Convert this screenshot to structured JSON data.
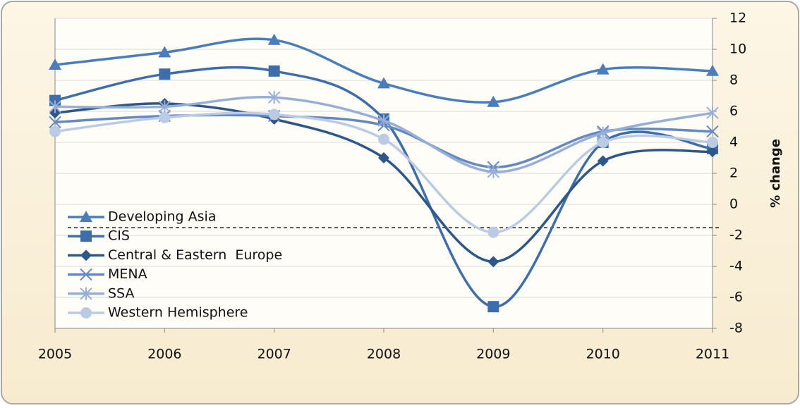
{
  "chart_data": {
    "type": "line",
    "y_axis_label": "% change",
    "x": [
      "2005",
      "2006",
      "2007",
      "2008",
      "2009",
      "2010",
      "2011"
    ],
    "series": [
      {
        "name": "Developing Asia",
        "color": "#4a7ebb",
        "marker": "triangle",
        "values": [
          9.0,
          9.8,
          10.6,
          7.8,
          6.6,
          8.7,
          8.6
        ]
      },
      {
        "name": "CIS",
        "color": "#3d6dab",
        "marker": "square",
        "values": [
          6.7,
          8.4,
          8.6,
          5.5,
          -6.6,
          4.0,
          3.6
        ]
      },
      {
        "name": "Central & Eastern  Europe",
        "color": "#2d5788",
        "marker": "diamond",
        "values": [
          5.9,
          6.5,
          5.5,
          3.0,
          -3.7,
          2.8,
          3.4
        ]
      },
      {
        "name": "MENA",
        "color": "#6489c2",
        "marker": "x",
        "values": [
          5.3,
          5.7,
          5.7,
          5.1,
          2.4,
          4.7,
          4.7
        ]
      },
      {
        "name": "SSA",
        "color": "#97afd7",
        "marker": "star",
        "values": [
          6.3,
          6.3,
          6.9,
          5.4,
          2.1,
          4.6,
          5.9
        ]
      },
      {
        "name": "Western Hemisphere",
        "color": "#bccbe4",
        "marker": "circle",
        "values": [
          4.7,
          5.6,
          5.8,
          4.2,
          -1.8,
          4.0,
          4.0
        ]
      }
    ],
    "reference_line": -1.5,
    "ylim": [
      -8,
      12
    ],
    "yticks": [
      -8,
      -6,
      -4,
      -2,
      0,
      2,
      4,
      6,
      8,
      10,
      12
    ],
    "grid": true,
    "legend": "left",
    "smooth": true
  }
}
